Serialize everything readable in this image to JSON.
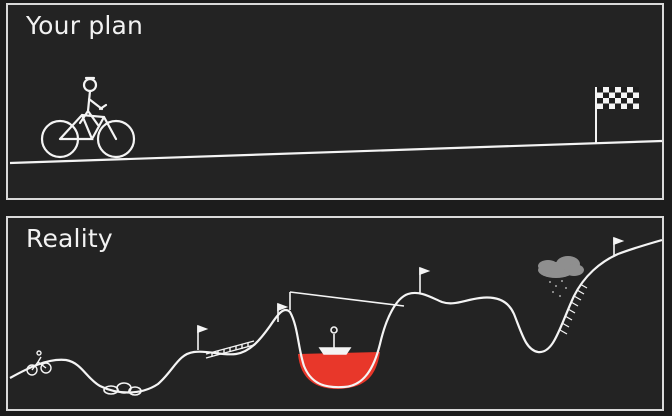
{
  "panels": {
    "plan": {
      "title": "Your plan"
    },
    "reality": {
      "title": "Reality"
    }
  },
  "colors": {
    "background": "#232323",
    "line": "#f4f4f4",
    "water": "#e8372a",
    "cloud": "#8f8f8f"
  },
  "icons": [
    "bicycle-rider-icon",
    "checkered-flag-icon",
    "flag-icon",
    "boat-icon",
    "cloud-icon",
    "rocks-icon"
  ]
}
